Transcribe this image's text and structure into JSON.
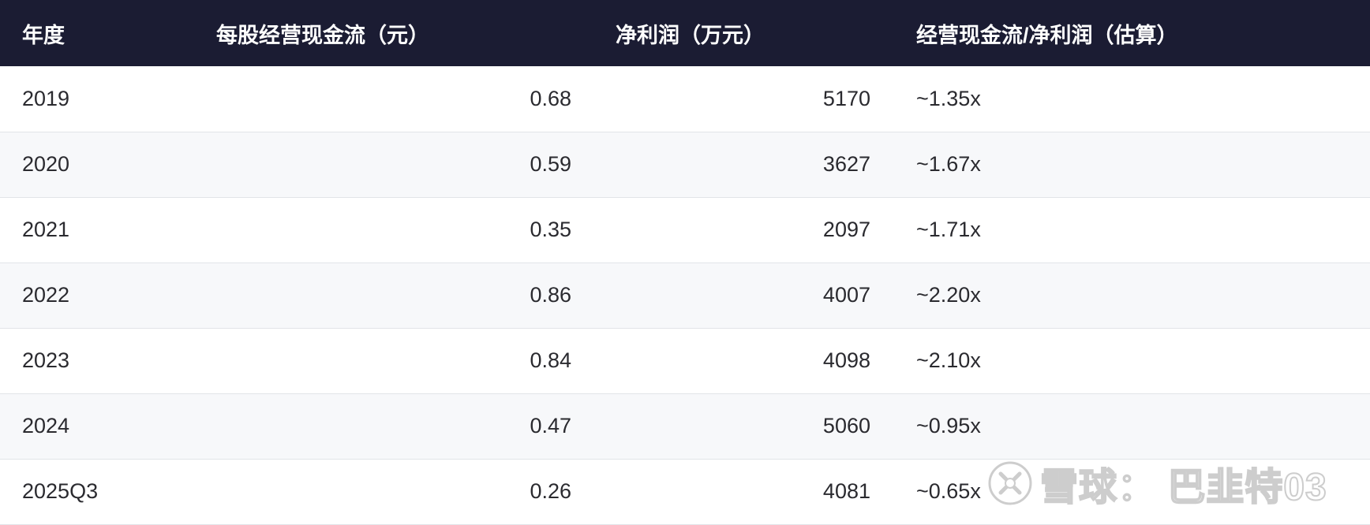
{
  "table": {
    "headers": {
      "year": "年度",
      "cash_flow_per_share": "每股经营现金流（元）",
      "net_profit": "净利润（万元）",
      "ratio": "经营现金流/净利润（估算）"
    },
    "rows": [
      {
        "year": "2019",
        "cash_flow_per_share": "0.68",
        "net_profit": "5170",
        "ratio": "~1.35x"
      },
      {
        "year": "2020",
        "cash_flow_per_share": "0.59",
        "net_profit": "3627",
        "ratio": "~1.67x"
      },
      {
        "year": "2021",
        "cash_flow_per_share": "0.35",
        "net_profit": "2097",
        "ratio": "~1.71x"
      },
      {
        "year": "2022",
        "cash_flow_per_share": "0.86",
        "net_profit": "4007",
        "ratio": "~2.20x"
      },
      {
        "year": "2023",
        "cash_flow_per_share": "0.84",
        "net_profit": "4098",
        "ratio": "~2.10x"
      },
      {
        "year": "2024",
        "cash_flow_per_share": "0.47",
        "net_profit": "5060",
        "ratio": "~0.95x"
      },
      {
        "year": "2025Q3",
        "cash_flow_per_share": "0.26",
        "net_profit": "4081",
        "ratio": "~0.65x"
      }
    ]
  },
  "watermark": {
    "text": "雪球： 巴韭特03",
    "icon": "xueqiu-logo-icon"
  },
  "colors": {
    "header_bg": "#1b1c33",
    "header_text": "#ffffff",
    "row_alt_bg": "#f7f8fa",
    "row_border": "#e2e4e8",
    "body_text": "#2a2a2f"
  }
}
